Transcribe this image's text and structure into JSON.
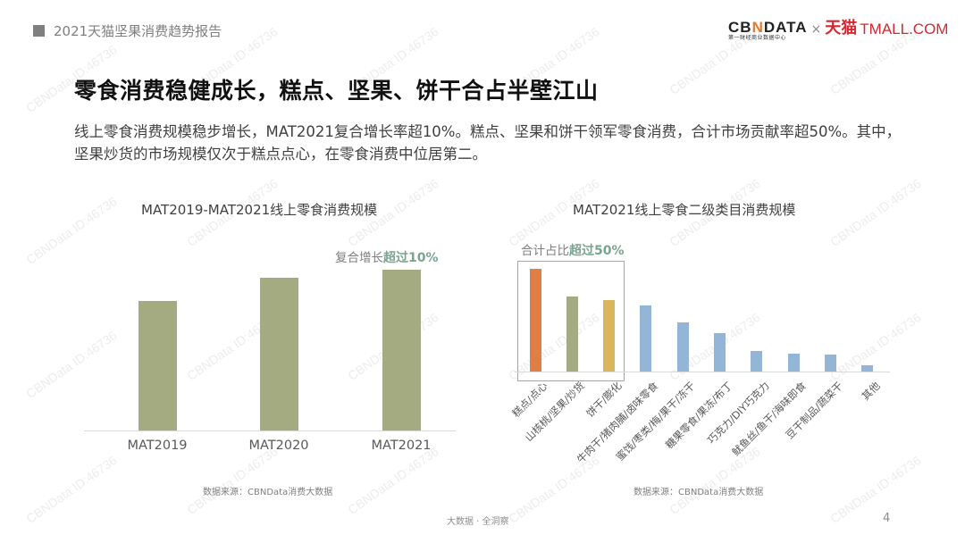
{
  "header": {
    "report_title": "2021天猫坚果消费趋势报告",
    "logo": {
      "cbn_prefix": "CB",
      "cbn_accent": "N",
      "cbn_suffix": "DATA",
      "cbn_subtitle": "第一财经商业数据中心",
      "separator": "×",
      "tmall_cn": "天猫",
      "tmall_en": "TMALL.COM"
    }
  },
  "main": {
    "title": "零食消费稳健成长，糕点、坚果、饼干合占半壁江山",
    "summary": "线上零食消费规模稳步增长，MAT2021复合增长率超10%。糕点、坚果和饼干领军零食消费，合计市场贡献率超50%。其中，坚果炒货的市场规模仅次于糕点点心，在零食消费中位居第二。"
  },
  "chart_data": [
    {
      "type": "bar",
      "title": "MAT2019-MAT2021线上零食消费规模",
      "categories": [
        "MAT2019",
        "MAT2020",
        "MAT2021"
      ],
      "values": [
        145,
        171,
        180
      ],
      "value_unit": "relative (no axis scale shown)",
      "color": "#a5ab80",
      "annotation": {
        "prefix": "复合增长",
        "highlight": "超过10%"
      },
      "xlabel": "",
      "ylabel": "",
      "grid": false,
      "source": "数据来源：CBNData消费大数据"
    },
    {
      "type": "bar",
      "title": "MAT2021线上零食二级类目消费规模",
      "categories": [
        "糕点/点心",
        "山核桃/坚果/炒货",
        "饼干/膨化",
        "牛肉干/猪肉脯/卤味零食",
        "蜜饯/枣类/梅/果干/冻干",
        "糖果零食/果冻/布丁",
        "巧克力/DIY巧克力",
        "鱿鱼丝/鱼干/海味即食",
        "豆干制品/蔬菜干",
        "其他"
      ],
      "values": [
        115,
        84,
        80,
        74,
        55,
        43,
        23,
        20,
        19,
        7
      ],
      "value_unit": "relative (no axis scale shown)",
      "colors": [
        "#e07f45",
        "#a5ab80",
        "#dbb55c",
        "#93b5d6",
        "#93b5d6",
        "#93b5d6",
        "#93b5d6",
        "#93b5d6",
        "#93b5d6",
        "#93b5d6"
      ],
      "annotation": {
        "prefix": "合计占比",
        "highlight": "超过50%",
        "boxed_categories": [
          "糕点/点心",
          "山核桃/坚果/炒货",
          "饼干/膨化"
        ]
      },
      "xlabel": "",
      "ylabel": "",
      "grid": false,
      "source": "数据来源：CBNData消费大数据"
    }
  ],
  "footer": {
    "tagline": "大数据 · 全洞察",
    "page_number": "4"
  },
  "watermark_text": "CBNData ID:46736",
  "colors": {
    "highlight_text": "#79a58f",
    "bar_green": "#a5ab80",
    "bar_orange": "#e07f45",
    "bar_yellow": "#dbb55c",
    "bar_blue": "#93b5d6",
    "brand_red": "#d7282f"
  }
}
